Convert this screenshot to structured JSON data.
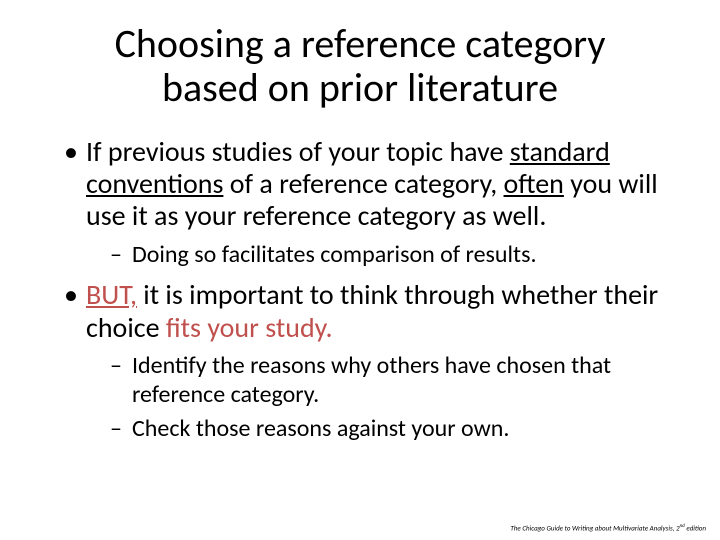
{
  "colors": {
    "background": "#1f4e79",
    "slide_bg": "#ffffff",
    "text": "#000000",
    "accent": "#c0504d"
  },
  "typography": {
    "title_fontsize": 40,
    "bullet1_fontsize": 28,
    "bullet2_fontsize": 24,
    "footer_fontsize": 7
  },
  "title": "Choosing a reference category based on prior literature",
  "bullets": [
    {
      "text_a": "If previous studies of your topic have ",
      "text_b": "standard conventions",
      "text_c": " of a reference category, ",
      "text_d": "often",
      "text_e": " you will use it as your reference category as well.",
      "sub": [
        "Doing so facilitates comparison of results."
      ]
    },
    {
      "but": "BUT,",
      "text_a": " it is important to think through whether their choice ",
      "fits": "fits your study.",
      "sub": [
        "Identify the reasons why others have chosen that reference category.",
        "Check those reasons against your own."
      ]
    }
  ],
  "footer": {
    "book": "The Chicago Guide to Writing about Multivariate Analysis,",
    "edition": " 2",
    "edition_sup": "nd",
    "edition_tail": " edition"
  }
}
